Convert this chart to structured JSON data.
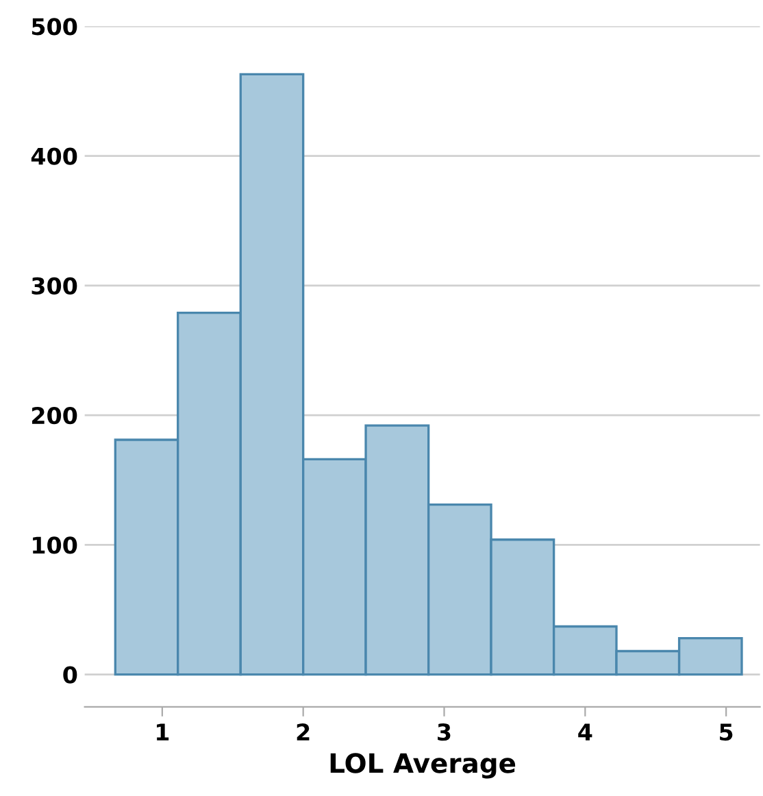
{
  "chart_data": {
    "type": "histogram",
    "xlabel": "LOL Average",
    "bins": [
      0.667,
      1.111,
      1.556,
      2.0,
      2.444,
      2.889,
      3.333,
      3.778,
      4.222,
      4.667,
      5.111
    ],
    "values": [
      181,
      279,
      463,
      166,
      192,
      131,
      104,
      37,
      18,
      28
    ],
    "color": "#a7c8dc",
    "xlim": [
      0.45,
      5.24
    ],
    "ylim": [
      -25,
      500
    ],
    "xticks": [
      1,
      2,
      3,
      4,
      5
    ],
    "yticks": [
      0,
      100,
      200,
      300,
      400,
      500
    ],
    "grid": "y"
  }
}
